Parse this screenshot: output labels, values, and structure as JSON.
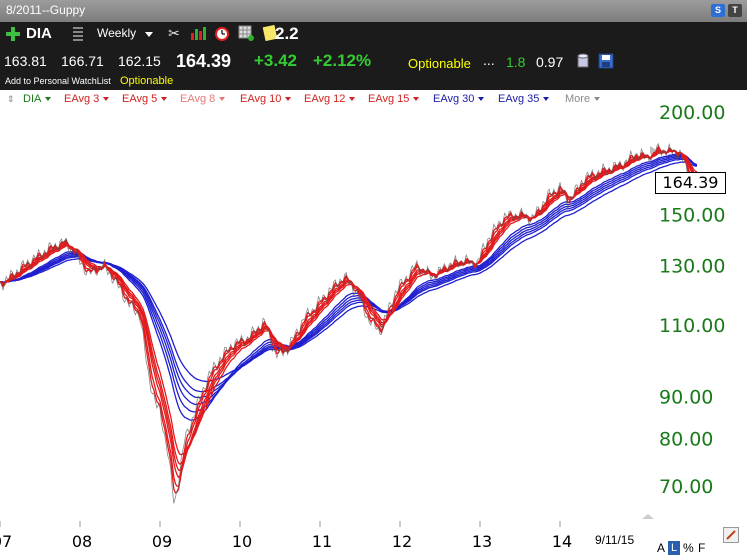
{
  "window": {
    "title": "8/2011--Guppy",
    "btn_s": "S",
    "btn_t": "T"
  },
  "toolbar": {
    "symbol": "DIA",
    "period": "Weekly",
    "ratio": "2.2",
    "icons": [
      "tools-icon",
      "chart-bars-icon",
      "alarm-clock-icon",
      "grid-plus-icon",
      "note-icon"
    ]
  },
  "quote": {
    "open": "163.81",
    "high": "166.71",
    "low": "162.15",
    "last": "164.39",
    "change": "+3.42",
    "change_pct": "+2.12%",
    "optionable": "Optionable",
    "ellipsis": "...",
    "value_green": "1.8",
    "value_white": "0.97",
    "watchlist_link": "Add to Personal WatchList",
    "optionable2": "Optionable"
  },
  "studies": [
    {
      "label": "DIA",
      "color": "#1a7a1a"
    },
    {
      "label": "EAvg 3",
      "color": "#d42020"
    },
    {
      "label": "EAvg 5",
      "color": "#d42020"
    },
    {
      "label": "EAvg 8",
      "color": "#e87878"
    },
    {
      "label": "EAvg 10",
      "color": "#d42020"
    },
    {
      "label": "EAvg 12",
      "color": "#d42020"
    },
    {
      "label": "EAvg 15",
      "color": "#d42020"
    },
    {
      "label": "EAvg 30",
      "color": "#1c1ca8"
    },
    {
      "label": "EAvg 35",
      "color": "#1c1ca8"
    },
    {
      "label": "More",
      "color": "#8a8a8a"
    }
  ],
  "colors": {
    "short_ema": "#e31a1c",
    "long_ema": "#1f1fd0",
    "price": "#555555",
    "axis_label": "#1a7a1a"
  },
  "footer": {
    "date_label": "9/11/15",
    "opt_a": "A",
    "opt_l": "L",
    "opt_pct": "%",
    "opt_f": "F"
  },
  "chart_data": {
    "type": "line",
    "title": "",
    "scale": "log",
    "xlabel": "",
    "ylabel": "",
    "ylim": [
      64,
      218
    ],
    "xlim": [
      2007.0,
      2016.0
    ],
    "y_ticks": [
      "200.00",
      "150.00",
      "130.00",
      "110.00",
      "90.00",
      "80.00",
      "70.00"
    ],
    "y_tick_values": [
      200,
      150,
      130,
      110,
      90,
      80,
      70
    ],
    "x_ticks": [
      "07",
      "08",
      "09",
      "10",
      "11",
      "12",
      "13",
      "14"
    ],
    "x_tick_values": [
      2007.0,
      2008.0,
      2009.0,
      2010.0,
      2011.0,
      2012.0,
      2013.0,
      2014.0
    ],
    "last_value": "164.39",
    "last_value_num": 164.39,
    "series": [
      {
        "name": "DIA",
        "points": [
          [
            2007.0,
            123
          ],
          [
            2007.3,
            130
          ],
          [
            2007.6,
            136
          ],
          [
            2007.8,
            139
          ],
          [
            2007.95,
            134
          ],
          [
            2008.1,
            127
          ],
          [
            2008.3,
            130
          ],
          [
            2008.45,
            124
          ],
          [
            2008.6,
            117
          ],
          [
            2008.75,
            113
          ],
          [
            2008.85,
            96
          ],
          [
            2008.95,
            88
          ],
          [
            2009.0,
            86
          ],
          [
            2009.1,
            77
          ],
          [
            2009.18,
            66
          ],
          [
            2009.3,
            79
          ],
          [
            2009.45,
            87
          ],
          [
            2009.6,
            95
          ],
          [
            2009.75,
            100
          ],
          [
            2009.9,
            104
          ],
          [
            2010.1,
            106
          ],
          [
            2010.3,
            111
          ],
          [
            2010.45,
            101
          ],
          [
            2010.6,
            103
          ],
          [
            2010.8,
            112
          ],
          [
            2010.95,
            116
          ],
          [
            2011.15,
            122
          ],
          [
            2011.3,
            126
          ],
          [
            2011.45,
            121
          ],
          [
            2011.6,
            112
          ],
          [
            2011.75,
            108
          ],
          [
            2011.95,
            121
          ],
          [
            2012.2,
            130
          ],
          [
            2012.4,
            126
          ],
          [
            2012.6,
            130
          ],
          [
            2012.8,
            132
          ],
          [
            2012.95,
            130
          ],
          [
            2013.1,
            140
          ],
          [
            2013.3,
            149
          ],
          [
            2013.5,
            150
          ],
          [
            2013.65,
            148
          ],
          [
            2013.85,
            158
          ],
          [
            2014.0,
            162
          ],
          [
            2014.1,
            155
          ],
          [
            2014.3,
            166
          ],
          [
            2014.5,
            169
          ],
          [
            2014.65,
            171
          ],
          [
            2014.8,
            173
          ],
          [
            2014.95,
            178
          ],
          [
            2015.1,
            176
          ],
          [
            2015.2,
            180
          ],
          [
            2015.4,
            179
          ],
          [
            2015.5,
            178
          ],
          [
            2015.6,
            168
          ],
          [
            2015.65,
            162
          ],
          [
            2015.72,
            164.39
          ]
        ]
      }
    ]
  }
}
